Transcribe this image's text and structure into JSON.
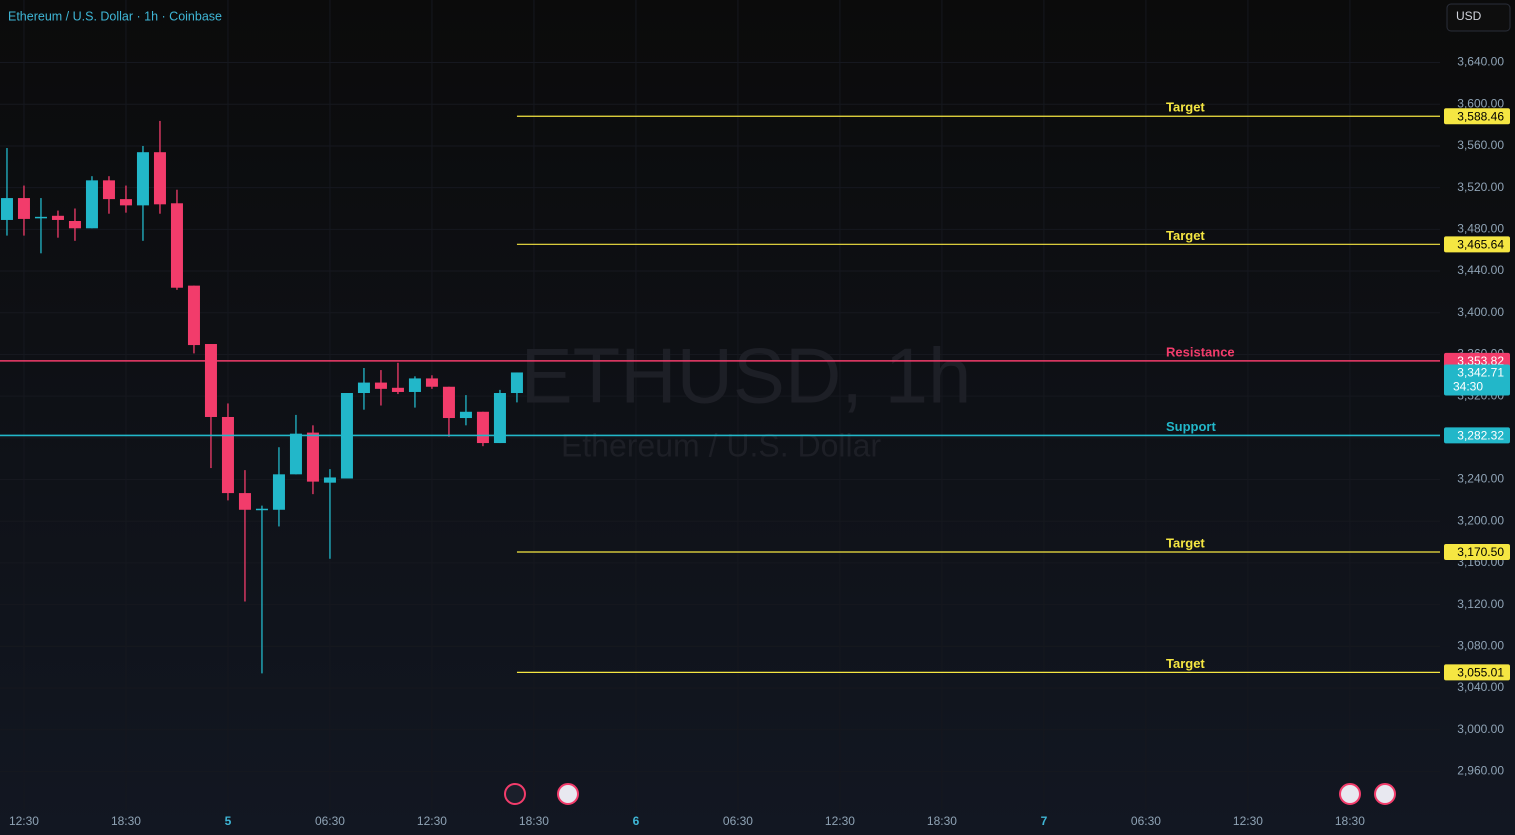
{
  "chart_data": {
    "type": "candlestick",
    "title": "Ethereum / U.S. Dollar · 1h · Coinbase",
    "watermark_symbol": "ETHUSD, 1h",
    "watermark_description": "Ethereum / U.S. Dollar",
    "currency": "USD",
    "up_color": "#22b7c9",
    "down_color": "#f23c6b",
    "x": [
      -1,
      0,
      1,
      2,
      3,
      4,
      5,
      6,
      7,
      8,
      9,
      10,
      11,
      12,
      13,
      14,
      15,
      16,
      17,
      18,
      19,
      20,
      21,
      22,
      23,
      24,
      25,
      26,
      27,
      28,
      29
    ],
    "open": [
      3489,
      3510,
      3491,
      3493,
      3488,
      3481,
      3527,
      3509,
      3503,
      3554,
      3505,
      3426,
      3370,
      3300,
      3227,
      3211,
      3211,
      3245,
      3285,
      3237,
      3241,
      3323,
      3333,
      3328,
      3324,
      3337,
      3329,
      3299,
      3305,
      3275,
      3323
    ],
    "high": [
      3558,
      3522,
      3510,
      3498,
      3500,
      3531,
      3531,
      3522,
      3560,
      3584,
      3518,
      3426,
      3370,
      3313,
      3249,
      3215,
      3271,
      3302,
      3292,
      3250,
      3323,
      3347,
      3345,
      3352,
      3339,
      3340,
      3329,
      3321,
      3305,
      3326,
      3342.71
    ],
    "low": [
      3474,
      3474,
      3457,
      3472,
      3469,
      3481,
      3495,
      3496,
      3469,
      3495,
      3422,
      3361,
      3251,
      3220,
      3123,
      3054,
      3195,
      3245,
      3226,
      3164,
      3241,
      3307,
      3311,
      3322,
      3309,
      3327,
      3281,
      3292,
      3272,
      3275,
      3314
    ],
    "close": [
      3510,
      3490,
      3492,
      3489,
      3481,
      3527,
      3509,
      3503,
      3554,
      3504,
      3424,
      3369,
      3300,
      3227,
      3211,
      3212,
      3245,
      3284,
      3238,
      3242,
      3323,
      3333,
      3327,
      3324,
      3337,
      3329,
      3299,
      3305,
      3275,
      3323,
      3342.71
    ],
    "last_close_label": "3,342.71",
    "countdown": "34:30",
    "levels": [
      {
        "name": "Target",
        "value": 3588.46,
        "value_label": "3,588.46",
        "color": "#f5e642",
        "from_last_bar": true
      },
      {
        "name": "Target",
        "value": 3465.64,
        "value_label": "3,465.64",
        "color": "#f5e642",
        "from_last_bar": true
      },
      {
        "name": "Resistance",
        "value": 3353.82,
        "value_label": "3,353.82",
        "color": "#f23c6b",
        "from_last_bar": false
      },
      {
        "name": "Support",
        "value": 3282.32,
        "value_label": "3,282.32",
        "color": "#22b7c9",
        "from_last_bar": false
      },
      {
        "name": "Target",
        "value": 3170.5,
        "value_label": "3,170.50",
        "color": "#f5e642",
        "from_last_bar": true
      },
      {
        "name": "Target",
        "value": 3055.01,
        "value_label": "3,055.01",
        "color": "#f5e642",
        "from_last_bar": true
      }
    ],
    "xlim": [
      -1.41,
      83.3
    ],
    "xticks": [
      {
        "value": 0,
        "label": "12:30"
      },
      {
        "value": 6,
        "label": "18:30"
      },
      {
        "value": 12,
        "label": "5"
      },
      {
        "value": 18,
        "label": "06:30"
      },
      {
        "value": 24,
        "label": "12:30"
      },
      {
        "value": 30,
        "label": "18:30"
      },
      {
        "value": 36,
        "label": "6"
      },
      {
        "value": 42,
        "label": "06:30"
      },
      {
        "value": 48,
        "label": "12:30"
      },
      {
        "value": 54,
        "label": "18:30"
      },
      {
        "value": 60,
        "label": "7"
      },
      {
        "value": 66,
        "label": "06:30"
      },
      {
        "value": 72,
        "label": "12:30"
      },
      {
        "value": 78,
        "label": "18:30"
      }
    ],
    "ylim": [
      2923,
      3700
    ],
    "yticks": [
      {
        "value": 3640,
        "label": "3,640.00"
      },
      {
        "value": 3600,
        "label": "3,600.00"
      },
      {
        "value": 3560,
        "label": "3,560.00"
      },
      {
        "value": 3520,
        "label": "3,520.00"
      },
      {
        "value": 3480,
        "label": "3,480.00"
      },
      {
        "value": 3440,
        "label": "3,440.00"
      },
      {
        "value": 3400,
        "label": "3,400.00"
      },
      {
        "value": 3360,
        "label": "3,360.00"
      },
      {
        "value": 3320,
        "label": "3,320.00"
      },
      {
        "value": 3280,
        "label": "3,280.00"
      },
      {
        "value": 3240,
        "label": "3,240.00"
      },
      {
        "value": 3200,
        "label": "3,200.00"
      },
      {
        "value": 3160,
        "label": "3,160.00"
      },
      {
        "value": 3120,
        "label": "3,120.00"
      },
      {
        "value": 3080,
        "label": "3,080.00"
      },
      {
        "value": 3040,
        "label": "3,040.00"
      },
      {
        "value": 3000,
        "label": "3,000.00"
      },
      {
        "value": 2960,
        "label": "2,960.00"
      }
    ],
    "grid": true
  }
}
